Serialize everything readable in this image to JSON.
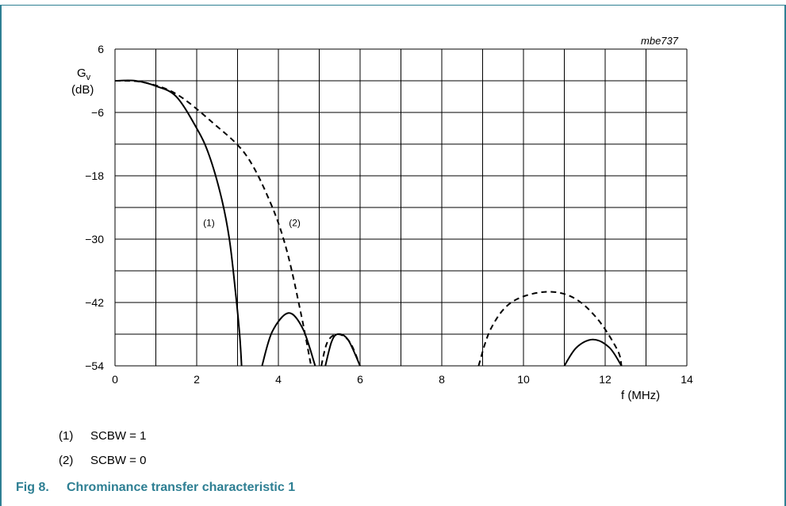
{
  "figure": {
    "code": "mbe737",
    "number_label": "Fig 8.",
    "caption": "Chrominance transfer characteristic 1"
  },
  "legend": [
    {
      "num": "(1)",
      "text": "SCBW = 1"
    },
    {
      "num": "(2)",
      "text": "SCBW = 0"
    }
  ],
  "colors": {
    "accent": "#2e7f93",
    "grid": "#000000",
    "curve": "#000000"
  },
  "chart_data": {
    "type": "line",
    "title": "",
    "xlabel": "f (MHz)",
    "ylabel_main": "G",
    "ylabel_sub": "v",
    "ylabel_unit": "(dB)",
    "xlim": [
      0,
      14
    ],
    "ylim": [
      -54,
      6
    ],
    "x_ticks": [
      0,
      2,
      4,
      6,
      8,
      10,
      12,
      14
    ],
    "y_ticks": [
      6,
      -6,
      -18,
      -30,
      -42,
      -54
    ],
    "y_tick_labels": [
      "6",
      "−6",
      "−18",
      "−30",
      "−42",
      "−54"
    ],
    "grid": true,
    "series": [
      {
        "name": "(1)",
        "style": "solid",
        "segments": [
          [
            [
              0,
              0
            ],
            [
              0.5,
              0
            ],
            [
              1,
              -1
            ],
            [
              1.5,
              -3
            ],
            [
              2,
              -9
            ],
            [
              2.3,
              -14
            ],
            [
              2.6,
              -22
            ],
            [
              2.8,
              -30
            ],
            [
              2.95,
              -40
            ],
            [
              3.05,
              -48
            ],
            [
              3.1,
              -54
            ]
          ],
          [
            [
              3.6,
              -54
            ],
            [
              3.85,
              -47.5
            ],
            [
              4.25,
              -44
            ],
            [
              4.6,
              -47
            ],
            [
              4.9,
              -54
            ]
          ],
          [
            [
              5.15,
              -54
            ],
            [
              5.3,
              -49.5
            ],
            [
              5.45,
              -48
            ],
            [
              5.7,
              -49
            ],
            [
              6.0,
              -54
            ]
          ],
          [
            [
              11.0,
              -54
            ],
            [
              11.3,
              -50.5
            ],
            [
              11.7,
              -49
            ],
            [
              12.1,
              -50.5
            ],
            [
              12.4,
              -54
            ]
          ]
        ]
      },
      {
        "name": "(2)",
        "style": "dashed",
        "segments": [
          [
            [
              0,
              0
            ],
            [
              0.7,
              -0.3
            ],
            [
              1.5,
              -2.5
            ],
            [
              2.4,
              -8
            ],
            [
              3.2,
              -14
            ],
            [
              3.8,
              -23
            ],
            [
              4.2,
              -32
            ],
            [
              4.55,
              -44
            ],
            [
              4.8,
              -54
            ]
          ],
          [
            [
              5.05,
              -54
            ],
            [
              5.2,
              -49.5
            ],
            [
              5.45,
              -48
            ],
            [
              5.75,
              -49.5
            ],
            [
              6.0,
              -54
            ]
          ],
          [
            [
              8.9,
              -54
            ],
            [
              9.2,
              -47
            ],
            [
              9.7,
              -42
            ],
            [
              10.5,
              -40
            ],
            [
              11.2,
              -41
            ],
            [
              11.8,
              -45
            ],
            [
              12.3,
              -51
            ],
            [
              12.4,
              -54
            ]
          ]
        ]
      }
    ],
    "annotations": [
      {
        "text": "(1)",
        "x": 2.3,
        "y": -27.5
      },
      {
        "text": "(2)",
        "x": 4.4,
        "y": -27.5
      }
    ]
  }
}
